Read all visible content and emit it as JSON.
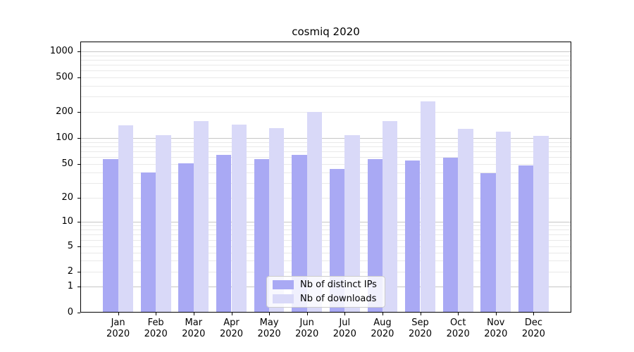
{
  "title": "cosmiq 2020",
  "chart_data": {
    "type": "bar",
    "title": "cosmiq 2020",
    "categories": [
      "Jan 2020",
      "Feb 2020",
      "Mar 2020",
      "Apr 2020",
      "May 2020",
      "Jun 2020",
      "Jul 2020",
      "Aug 2020",
      "Sep 2020",
      "Oct 2020",
      "Nov 2020",
      "Dec 2020"
    ],
    "series": [
      {
        "name": "Nb of distinct IPs",
        "color": "#a9a9f4",
        "values": [
          57,
          40,
          51,
          64,
          57,
          64,
          44,
          57,
          55,
          59,
          39,
          48
        ]
      },
      {
        "name": "Nb of downloads",
        "color": "#d9d9f8",
        "values": [
          140,
          108,
          157,
          143,
          130,
          200,
          108,
          157,
          265,
          128,
          118,
          105
        ]
      }
    ],
    "xlabel": "",
    "ylabel": "",
    "yticks": [
      0,
      1,
      2,
      5,
      10,
      20,
      50,
      100,
      200,
      500,
      1000
    ],
    "ylim": [
      0,
      1000
    ],
    "yscale": "log-like with 0 baseline",
    "grid": true,
    "legend_position": "lower center"
  },
  "colors": {
    "bar_dark": "#a9a9f4",
    "bar_light": "#d9d9f8",
    "grid_major": "#c6c6c6",
    "grid_minor": "#e9e9e9",
    "spine": "#000000",
    "legend_border": "#cccccc",
    "text": "#000000"
  }
}
